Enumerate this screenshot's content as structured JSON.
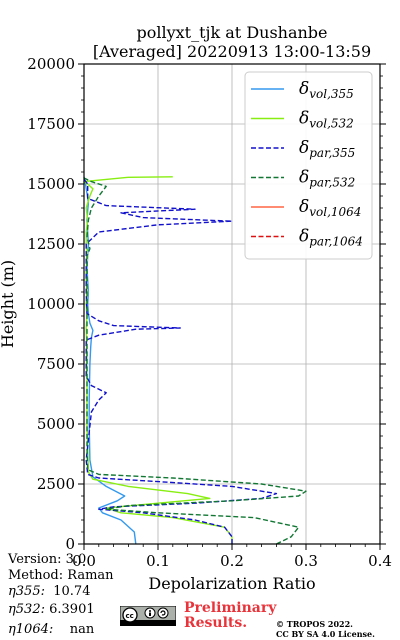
{
  "title_line1": "pollyxt_tjk at Dushanbe",
  "title_line2": "[Averaged] 20220913 13:00-13:59",
  "meta": {
    "version": "Version: 3.0",
    "method": "Method: Raman",
    "eta355_label": "η355:",
    "eta355_value": "10.74",
    "eta532_label": "η532:",
    "eta532_value": "6.3901",
    "eta1064_label": "η1064:",
    "eta1064_value": "nan"
  },
  "footer": {
    "preliminary_line1": "Preliminary",
    "preliminary_line2": "Results.",
    "copyright_line1": "© TROPOS 2022.",
    "copyright_line2": "CC BY SA 4.0 License.",
    "license_badge": "cc-by-sa-icon"
  },
  "chart_data": {
    "type": "line",
    "xlabel": "Depolarization Ratio",
    "ylabel": "Height (m)",
    "xlim": [
      0,
      0.4
    ],
    "ylim": [
      0,
      20000
    ],
    "xticks": [
      "0.0",
      "0.1",
      "0.2",
      "0.3",
      "0.4"
    ],
    "yticks": [
      "0",
      "2500",
      "5000",
      "7500",
      "10000",
      "12500",
      "15000",
      "17500",
      "20000"
    ],
    "xtick_values": [
      0,
      0.1,
      0.2,
      0.3,
      0.4
    ],
    "ytick_values": [
      0,
      2500,
      5000,
      7500,
      10000,
      12500,
      15000,
      17500,
      20000
    ],
    "grid": true,
    "legend_position": "top-right",
    "series": [
      {
        "name": "δvol,355",
        "label_main": "δ",
        "label_sub": "vol,355",
        "color": "#3399ee",
        "dash": "solid",
        "points": [
          [
            0.07,
            0
          ],
          [
            0.068,
            500
          ],
          [
            0.05,
            1000
          ],
          [
            0.025,
            1300
          ],
          [
            0.02,
            1500
          ],
          [
            0.045,
            1800
          ],
          [
            0.055,
            2000
          ],
          [
            0.03,
            2400
          ],
          [
            0.012,
            2800
          ],
          [
            0.008,
            3500
          ],
          [
            0.007,
            5000
          ],
          [
            0.007,
            6000
          ],
          [
            0.008,
            7500
          ],
          [
            0.009,
            8200
          ],
          [
            0.01,
            8600
          ],
          [
            0.012,
            8900
          ],
          [
            0.008,
            9200
          ],
          [
            0.006,
            9600
          ],
          [
            0.005,
            10000
          ],
          [
            0.006,
            10500
          ],
          [
            0.005,
            11000
          ],
          [
            0.004,
            11500
          ],
          [
            0.005,
            12000
          ],
          [
            0.006,
            12500
          ],
          [
            0.005,
            13000
          ],
          [
            0.004,
            13500
          ],
          [
            0.005,
            13900
          ],
          [
            0.006,
            14200
          ],
          [
            0.004,
            14600
          ],
          [
            0.002,
            15000
          ],
          [
            0.0,
            15300
          ]
        ]
      },
      {
        "name": "δvol,532",
        "label_main": "δ",
        "label_sub": "vol,532",
        "color": "#88ee11",
        "dash": "solid",
        "points": [
          [
            0.2,
            0
          ],
          [
            0.2,
            300
          ],
          [
            0.19,
            700
          ],
          [
            0.12,
            1100
          ],
          [
            0.05,
            1300
          ],
          [
            0.03,
            1500
          ],
          [
            0.1,
            1700
          ],
          [
            0.17,
            1900
          ],
          [
            0.14,
            2100
          ],
          [
            0.06,
            2400
          ],
          [
            0.012,
            2700
          ],
          [
            0.006,
            3000
          ],
          [
            0.005,
            4000
          ],
          [
            0.004,
            5000
          ],
          [
            0.004,
            6000
          ],
          [
            0.004,
            7000
          ],
          [
            0.004,
            8000
          ],
          [
            0.003,
            9000
          ],
          [
            0.004,
            9500
          ],
          [
            0.003,
            10000
          ],
          [
            0.005,
            10500
          ],
          [
            0.003,
            11000
          ],
          [
            0.003,
            11500
          ],
          [
            0.005,
            12000
          ],
          [
            0.003,
            12500
          ],
          [
            0.003,
            13000
          ],
          [
            0.005,
            13500
          ],
          [
            0.003,
            14000
          ],
          [
            0.008,
            14500
          ],
          [
            0.012,
            14800
          ],
          [
            0.005,
            15000
          ],
          [
            0.0,
            15100
          ],
          [
            0.06,
            15280
          ],
          [
            0.12,
            15300
          ]
        ]
      },
      {
        "name": "δpar,355",
        "label_main": "δ",
        "label_sub": "par,355",
        "color": "#1111cc",
        "dash": "dash",
        "points": [
          [
            0.2,
            0
          ],
          [
            0.2,
            300
          ],
          [
            0.19,
            700
          ],
          [
            0.15,
            1000
          ],
          [
            0.08,
            1300
          ],
          [
            0.02,
            1450
          ],
          [
            0.04,
            1550
          ],
          [
            0.15,
            1700
          ],
          [
            0.24,
            1900
          ],
          [
            0.26,
            2100
          ],
          [
            0.2,
            2400
          ],
          [
            0.1,
            2600
          ],
          [
            0.02,
            2750
          ],
          [
            0.005,
            2900
          ],
          [
            0.003,
            3500
          ],
          [
            0.01,
            5500
          ],
          [
            0.02,
            6000
          ],
          [
            0.03,
            6300
          ],
          [
            0.01,
            6600
          ],
          [
            0.003,
            7000
          ],
          [
            0.003,
            8500
          ],
          [
            0.02,
            8700
          ],
          [
            0.07,
            8950
          ],
          [
            0.13,
            9000
          ],
          [
            0.04,
            9100
          ],
          [
            0.02,
            9300
          ],
          [
            0.004,
            9600
          ],
          [
            0.003,
            10500
          ],
          [
            0.003,
            12500
          ],
          [
            0.02,
            13000
          ],
          [
            0.1,
            13300
          ],
          [
            0.2,
            13450
          ],
          [
            0.08,
            13600
          ],
          [
            0.05,
            13800
          ],
          [
            0.15,
            13950
          ],
          [
            0.03,
            14100
          ],
          [
            0.005,
            14400
          ],
          [
            0.005,
            15000
          ],
          [
            0.0,
            15200
          ]
        ]
      },
      {
        "name": "δpar,532",
        "label_main": "δ",
        "label_sub": "par,532",
        "color": "#117733",
        "dash": "dash",
        "points": [
          [
            0.26,
            0
          ],
          [
            0.28,
            300
          ],
          [
            0.29,
            700
          ],
          [
            0.23,
            1100
          ],
          [
            0.1,
            1300
          ],
          [
            0.03,
            1450
          ],
          [
            0.06,
            1600
          ],
          [
            0.2,
            1800
          ],
          [
            0.29,
            2000
          ],
          [
            0.3,
            2200
          ],
          [
            0.24,
            2500
          ],
          [
            0.12,
            2750
          ],
          [
            0.02,
            2900
          ],
          [
            0.005,
            3100
          ],
          [
            0.004,
            4000
          ],
          [
            0.004,
            8000
          ],
          [
            0.004,
            12000
          ],
          [
            0.008,
            12300
          ],
          [
            0.004,
            12800
          ],
          [
            0.006,
            13500
          ],
          [
            0.01,
            14000
          ],
          [
            0.02,
            14500
          ],
          [
            0.03,
            14900
          ],
          [
            0.01,
            15100
          ],
          [
            0.0,
            15250
          ]
        ]
      },
      {
        "name": "δvol,1064",
        "label_main": "δ",
        "label_sub": "vol,1064",
        "color": "#ff6644",
        "dash": "solid",
        "points": []
      },
      {
        "name": "δpar,1064",
        "label_main": "δ",
        "label_sub": "par,1064",
        "color": "#dd1111",
        "dash": "dash",
        "points": []
      }
    ]
  }
}
